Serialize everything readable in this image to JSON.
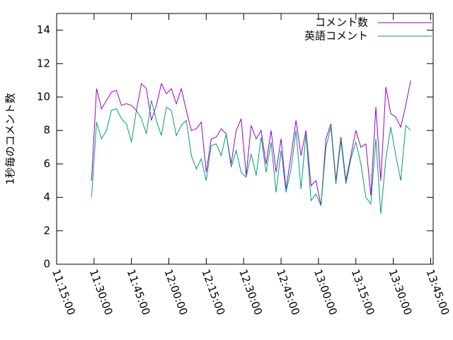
{
  "chart_data": {
    "type": "line",
    "ylabel": "1秒毎のコメント数",
    "x": [
      "11:29:00",
      "11:31:00",
      "11:33:00",
      "11:35:00",
      "11:37:00",
      "11:39:00",
      "11:41:00",
      "11:43:00",
      "11:45:00",
      "11:47:00",
      "11:49:00",
      "11:51:00",
      "11:53:00",
      "11:55:00",
      "11:57:00",
      "11:59:00",
      "12:01:00",
      "12:03:00",
      "12:05:00",
      "12:07:00",
      "12:09:00",
      "12:11:00",
      "12:13:00",
      "12:15:00",
      "12:17:00",
      "12:19:00",
      "12:21:00",
      "12:23:00",
      "12:25:00",
      "12:27:00",
      "12:29:00",
      "12:31:00",
      "12:33:00",
      "12:35:00",
      "12:37:00",
      "12:39:00",
      "12:41:00",
      "12:43:00",
      "12:45:00",
      "12:47:00",
      "12:49:00",
      "12:51:00",
      "12:53:00",
      "12:55:00",
      "12:57:00",
      "12:59:00",
      "13:01:00",
      "13:03:00",
      "13:05:00",
      "13:07:00",
      "13:09:00",
      "13:11:00",
      "13:13:00",
      "13:15:00",
      "13:17:00",
      "13:19:00",
      "13:21:00",
      "13:23:00",
      "13:25:00",
      "13:27:00",
      "13:29:00",
      "13:31:00",
      "13:33:00",
      "13:35:00",
      "13:37:00"
    ],
    "series": [
      {
        "name": "コメント数",
        "color": "#9400d3",
        "values": [
          5.0,
          10.5,
          9.3,
          9.8,
          10.3,
          10.4,
          9.5,
          9.6,
          9.5,
          9.2,
          10.8,
          10.5,
          8.6,
          9.5,
          10.8,
          10.2,
          10.5,
          9.6,
          10.5,
          9.2,
          8.0,
          8.1,
          8.5,
          5.5,
          7.5,
          7.6,
          8.1,
          7.8,
          6.0,
          8.0,
          8.7,
          5.3,
          8.3,
          7.5,
          8.0,
          6.0,
          8.0,
          5.5,
          7.5,
          4.5,
          6.5,
          8.6,
          6.5,
          8.0,
          4.7,
          5.0,
          3.5,
          7.5,
          8.4,
          5.0,
          7.6,
          5.0,
          6.5,
          8.0,
          7.0,
          7.2,
          4.1,
          9.4,
          5.0,
          10.6,
          9.0,
          8.8,
          8.2,
          9.5,
          11.0
        ]
      },
      {
        "name": "英語コメント",
        "color": "#009e73",
        "values": [
          4.0,
          8.5,
          7.5,
          8.0,
          9.2,
          9.3,
          8.7,
          8.4,
          7.3,
          9.2,
          8.7,
          7.8,
          9.8,
          8.6,
          7.7,
          9.4,
          9.2,
          7.7,
          8.3,
          8.6,
          6.5,
          5.7,
          6.3,
          5.0,
          7.1,
          7.2,
          6.5,
          7.8,
          5.8,
          6.8,
          5.5,
          5.2,
          6.6,
          5.3,
          7.6,
          5.5,
          7.3,
          4.3,
          6.8,
          4.3,
          5.7,
          8.0,
          4.5,
          7.8,
          3.8,
          4.2,
          3.5,
          7.0,
          8.2,
          4.8,
          7.4,
          4.8,
          6.3,
          7.3,
          6.0,
          4.0,
          3.6,
          7.5,
          3.0,
          6.3,
          8.2,
          6.5,
          5.0,
          8.3,
          8.0
        ]
      }
    ],
    "xlim": [
      "11:15:00",
      "13:46:00"
    ],
    "xticks": [
      "11:15:00",
      "11:30:00",
      "11:45:00",
      "12:00:00",
      "12:15:00",
      "12:30:00",
      "12:45:00",
      "13:00:00",
      "13:15:00",
      "13:30:00",
      "13:45:00"
    ],
    "ylim": [
      0,
      15
    ],
    "yticks": [
      0,
      2,
      4,
      6,
      8,
      10,
      12,
      14
    ],
    "legend": "top right"
  }
}
